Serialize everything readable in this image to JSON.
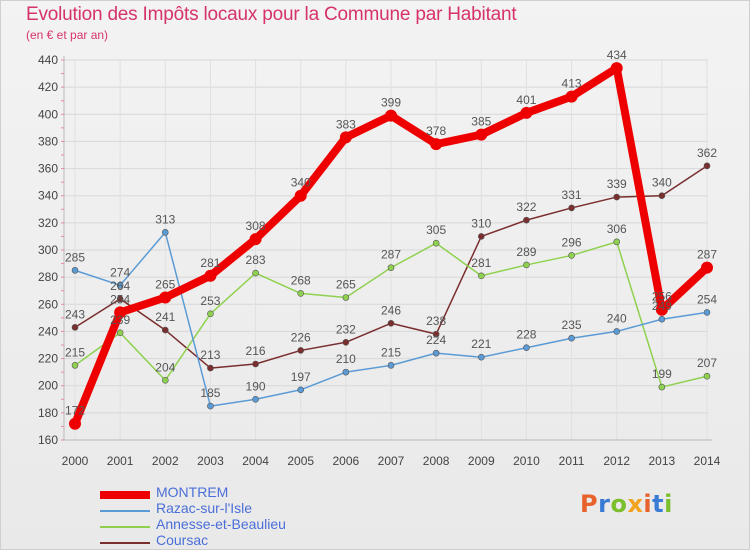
{
  "header": {
    "title": "Evolution des Impôts locaux pour la Commune par Habitant",
    "subtitle": "(en € et par an)"
  },
  "logo": {
    "text": "Proxiti",
    "letter_colors": [
      "#e8622c",
      "#3a7bd5",
      "#7cbf2d",
      "#f2a31b",
      "#e8622c",
      "#3a7bd5",
      "#7cbf2d"
    ]
  },
  "chart_data": {
    "type": "line",
    "title": "Evolution des Impôts locaux pour la Commune par Habitant",
    "subtitle": "(en € et par an)",
    "xlabel": "",
    "ylabel": "",
    "x": [
      "2000",
      "2001",
      "2002",
      "2003",
      "2004",
      "2005",
      "2006",
      "2007",
      "2008",
      "2009",
      "2010",
      "2011",
      "2012",
      "2013",
      "2014"
    ],
    "ylim": [
      160,
      440
    ],
    "yticks": [
      160,
      180,
      200,
      220,
      240,
      260,
      280,
      300,
      320,
      340,
      360,
      380,
      400,
      420,
      440
    ],
    "grid": true,
    "legend_position": "bottom-left",
    "series": [
      {
        "name": "MONTREM",
        "color": "#ee0000",
        "values": [
          172,
          254,
          265,
          281,
          308,
          340,
          383,
          399,
          378,
          385,
          401,
          413,
          434,
          256,
          287
        ],
        "labels": [
          "172",
          "254",
          "265",
          "281",
          "308",
          "340",
          "383",
          "399",
          "378",
          "385",
          "401",
          "413",
          "434",
          "256",
          "287"
        ]
      },
      {
        "name": "Razac-sur-l'Isle",
        "color": "#5b9bd5",
        "values": [
          285,
          274,
          313,
          185,
          190,
          197,
          210,
          215,
          224,
          221,
          228,
          235,
          240,
          249,
          254
        ],
        "labels": [
          "285",
          "274",
          "313",
          "185",
          "190",
          "197",
          "210",
          "215",
          "224",
          "221",
          "228",
          "235",
          "240",
          "249",
          "254"
        ]
      },
      {
        "name": "Annesse-et-Beaulieu",
        "color": "#8fd14f",
        "values": [
          215,
          239,
          204,
          253,
          283,
          268,
          265,
          287,
          305,
          281,
          289,
          296,
          306,
          199,
          207
        ],
        "labels": [
          "215",
          "239",
          "204",
          "253",
          "283",
          "268",
          "265",
          "287",
          "305",
          "281",
          "289",
          "296",
          "306",
          "199",
          "207"
        ]
      },
      {
        "name": "Coursac",
        "color": "#7a2e2e",
        "values": [
          243,
          264,
          241,
          213,
          216,
          226,
          232,
          246,
          238,
          310,
          322,
          331,
          339,
          340,
          362
        ],
        "labels": [
          "243",
          "264",
          "241",
          "213",
          "216",
          "226",
          "232",
          "246",
          "238",
          "310",
          "322",
          "331",
          "339",
          "340",
          "362"
        ]
      }
    ]
  }
}
